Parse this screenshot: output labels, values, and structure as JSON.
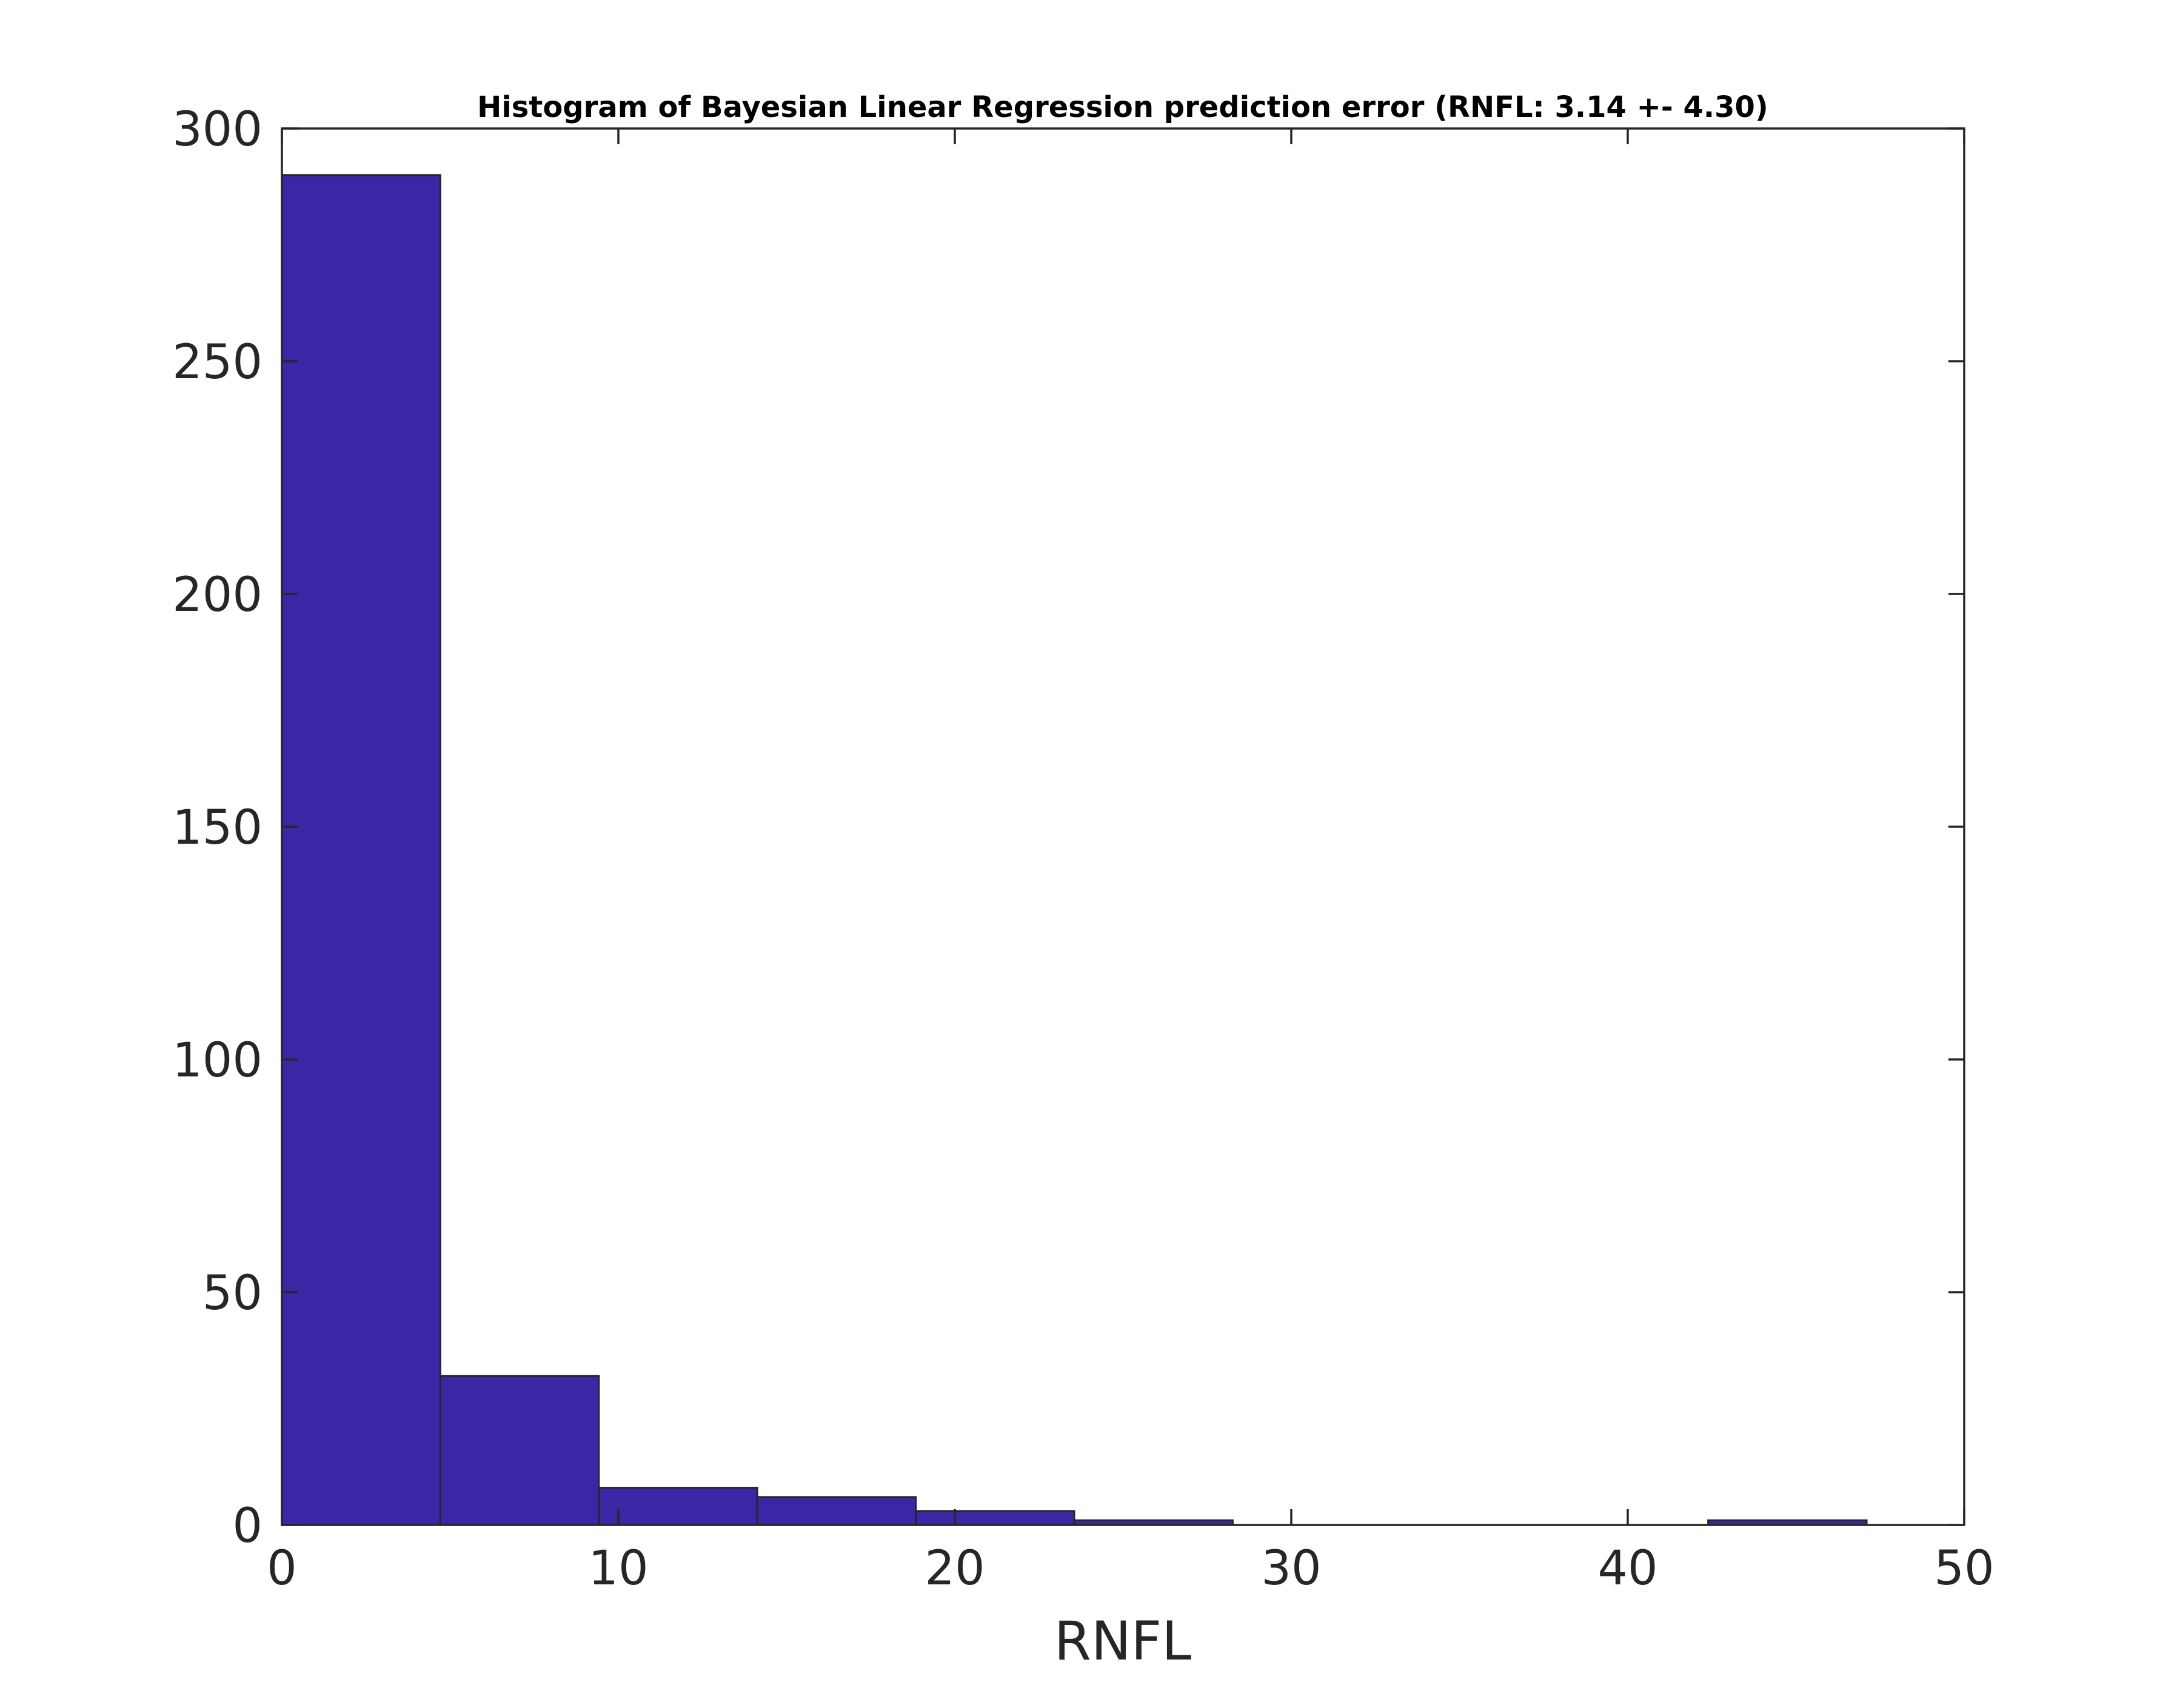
{
  "chart_data": {
    "type": "bar",
    "title": "Histogram of Bayesian Linear Regression prediction error (RNFL: 3.14 +- 4.30)",
    "xlabel": "RNFL",
    "ylabel": "",
    "xlim": [
      0,
      50
    ],
    "ylim": [
      0,
      300
    ],
    "xticks": [
      "0",
      "10",
      "20",
      "30",
      "40",
      "50"
    ],
    "yticks": [
      "0",
      "50",
      "100",
      "150",
      "200",
      "250",
      "300"
    ],
    "grid": false,
    "bin_edges": [
      0,
      4.71,
      9.42,
      14.13,
      18.84,
      23.55,
      28.26,
      32.97,
      37.68,
      42.39,
      47.1
    ],
    "values": [
      290,
      32,
      8,
      6,
      3,
      1,
      0,
      0,
      0,
      1
    ],
    "bar_color": "#3c26a6",
    "edge_color": "#262626"
  }
}
